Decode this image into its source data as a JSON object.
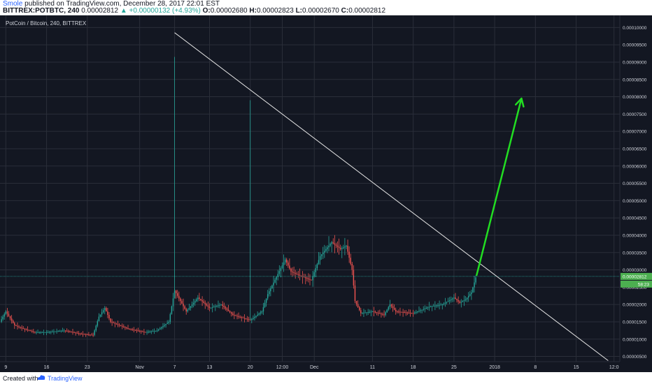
{
  "header": {
    "author": "Smole",
    "published": "published on TradingView.com, December 28, 2017 22:01 EST",
    "symbol": "BITTREX:POTBTC, 240",
    "price": "0.00002812",
    "change": "▲ +0.00000132 (+4.93%)",
    "o_label": "O:",
    "o": "0.00002680",
    "h_label": "H:",
    "h": "0.00002823",
    "l_label": "L:",
    "l": "0.00002670",
    "c_label": "C:",
    "c": "0.00002812"
  },
  "footer": {
    "created": "Created with",
    "brand": "TradingView"
  },
  "chart_data": {
    "type": "candlestick",
    "title": "PotCoin / Bitcoin, 240, BITTREX",
    "y_ticks": [
      "0.00000500",
      "0.00001000",
      "0.00001500",
      "0.00002000",
      "0.00002500",
      "0.00003000",
      "0.00003500",
      "0.00004000",
      "0.00004500",
      "0.00005000",
      "0.00005500",
      "0.00006000",
      "0.00006500",
      "0.00007000",
      "0.00007500",
      "0.00008000",
      "0.00008500",
      "0.00009000",
      "0.00009500",
      "0.00010000"
    ],
    "y_tick_values": [
      5e-06,
      1e-05,
      1.5e-05,
      2e-05,
      2.5e-05,
      3e-05,
      3.5e-05,
      4e-05,
      4.5e-05,
      5e-05,
      5.5e-05,
      6e-05,
      6.5e-05,
      7e-05,
      7.5e-05,
      8e-05,
      8.5e-05,
      9e-05,
      9.5e-05,
      0.0001
    ],
    "ylim": [
      3.5e-06,
      0.0001035
    ],
    "x_ticks": [
      {
        "label": "9",
        "day": 0
      },
      {
        "label": "16",
        "day": 7
      },
      {
        "label": "23",
        "day": 14
      },
      {
        "label": "Nov",
        "day": 23
      },
      {
        "label": "7",
        "day": 29
      },
      {
        "label": "13",
        "day": 35
      },
      {
        "label": "20",
        "day": 42
      },
      {
        "label": "12:00",
        "day": 47.5
      },
      {
        "label": "Dec",
        "day": 53
      },
      {
        "label": "11",
        "day": 63
      },
      {
        "label": "18",
        "day": 70
      },
      {
        "label": "25",
        "day": 77
      },
      {
        "label": "2018",
        "day": 84
      },
      {
        "label": "8",
        "day": 91
      },
      {
        "label": "15",
        "day": 98
      },
      {
        "label": "12:0",
        "day": 104.5
      }
    ],
    "xlim": [
      -1,
      105.5
    ],
    "last_price_label": "0.00002812",
    "last_price": 2.812e-05,
    "countdown_label": "58:23",
    "series_points": [
      {
        "day": -1,
        "value": 1.5e-05
      },
      {
        "day": 0,
        "value": 1.8e-05
      },
      {
        "day": 1.5,
        "value": 1.4e-05
      },
      {
        "day": 3,
        "value": 1.3e-05
      },
      {
        "day": 5,
        "value": 1.2e-05
      },
      {
        "day": 7,
        "value": 1.2e-05
      },
      {
        "day": 10,
        "value": 1.25e-05
      },
      {
        "day": 13,
        "value": 1.15e-05
      },
      {
        "day": 15,
        "value": 1.12e-05
      },
      {
        "day": 16,
        "value": 1.65e-05
      },
      {
        "day": 17,
        "value": 1.9e-05
      },
      {
        "day": 18,
        "value": 1.5e-05
      },
      {
        "day": 21,
        "value": 1.3e-05
      },
      {
        "day": 24,
        "value": 1.2e-05
      },
      {
        "day": 26,
        "value": 1.25e-05
      },
      {
        "day": 28,
        "value": 1.5e-05
      },
      {
        "day": 29,
        "value": 2.4e-05
      },
      {
        "day": 30,
        "value": 2.1e-05
      },
      {
        "day": 31,
        "value": 1.8e-05
      },
      {
        "day": 33,
        "value": 2.2e-05
      },
      {
        "day": 35,
        "value": 1.9e-05
      },
      {
        "day": 37,
        "value": 2e-05
      },
      {
        "day": 39,
        "value": 1.7e-05
      },
      {
        "day": 42,
        "value": 1.55e-05
      },
      {
        "day": 44,
        "value": 1.8e-05
      },
      {
        "day": 45,
        "value": 2.3e-05
      },
      {
        "day": 46.5,
        "value": 2.8e-05
      },
      {
        "day": 48,
        "value": 3.3e-05
      },
      {
        "day": 49,
        "value": 2.95e-05
      },
      {
        "day": 51,
        "value": 2.8e-05
      },
      {
        "day": 52.5,
        "value": 2.7e-05
      },
      {
        "day": 54,
        "value": 3.4e-05
      },
      {
        "day": 56,
        "value": 3.8e-05
      },
      {
        "day": 57.5,
        "value": 3.6e-05
      },
      {
        "day": 58.5,
        "value": 3.7e-05
      },
      {
        "day": 59.5,
        "value": 3e-05
      },
      {
        "day": 60,
        "value": 2.1e-05
      },
      {
        "day": 61,
        "value": 1.75e-05
      },
      {
        "day": 63,
        "value": 1.8e-05
      },
      {
        "day": 65,
        "value": 1.7e-05
      },
      {
        "day": 66,
        "value": 2e-05
      },
      {
        "day": 67,
        "value": 1.8e-05
      },
      {
        "day": 70,
        "value": 1.75e-05
      },
      {
        "day": 73,
        "value": 1.95e-05
      },
      {
        "day": 75,
        "value": 2e-05
      },
      {
        "day": 77,
        "value": 2.2e-05
      },
      {
        "day": 78,
        "value": 2.05e-05
      },
      {
        "day": 79,
        "value": 2.15e-05
      },
      {
        "day": 80,
        "value": 2.35e-05
      },
      {
        "day": 80.8,
        "value": 2.81e-05
      }
    ],
    "spike_wicks": [
      {
        "day": 29,
        "high": 9.15e-05
      },
      {
        "day": 42,
        "high": 7.9e-05
      }
    ],
    "trendline": {
      "from": {
        "day": 29,
        "value": 9.85e-05
      },
      "to": {
        "day": 103.5,
        "value": 3.8e-06
      }
    },
    "arrow": {
      "from": {
        "day": 80.9,
        "value": 2.85e-05
      },
      "to": {
        "day": 88.6,
        "value": 7.95e-05
      }
    },
    "colors": {
      "background": "#131722",
      "grid": "#2a2e39",
      "up": "#26a69a",
      "down": "#ef5350",
      "arrow": "#22dd22",
      "trendline": "#e6e6e6",
      "price_label": "#4caf50"
    }
  }
}
